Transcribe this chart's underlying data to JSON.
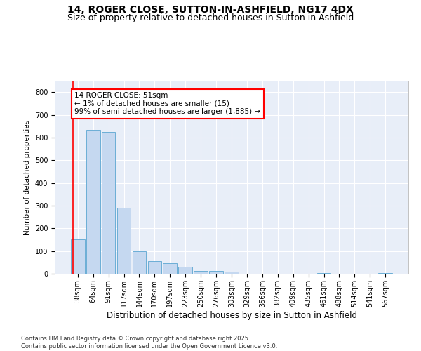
{
  "title1": "14, ROGER CLOSE, SUTTON-IN-ASHFIELD, NG17 4DX",
  "title2": "Size of property relative to detached houses in Sutton in Ashfield",
  "xlabel": "Distribution of detached houses by size in Sutton in Ashfield",
  "ylabel": "Number of detached properties",
  "categories": [
    "38sqm",
    "64sqm",
    "91sqm",
    "117sqm",
    "144sqm",
    "170sqm",
    "197sqm",
    "223sqm",
    "250sqm",
    "276sqm",
    "303sqm",
    "329sqm",
    "356sqm",
    "382sqm",
    "409sqm",
    "435sqm",
    "461sqm",
    "488sqm",
    "514sqm",
    "541sqm",
    "567sqm"
  ],
  "values": [
    150,
    635,
    625,
    290,
    100,
    55,
    45,
    30,
    13,
    13,
    8,
    0,
    0,
    0,
    0,
    0,
    3,
    0,
    0,
    0,
    3
  ],
  "bar_color": "#c5d8f0",
  "bar_edge_color": "#6baed6",
  "annotation_text": "14 ROGER CLOSE: 51sqm\n← 1% of detached houses are smaller (15)\n99% of semi-detached houses are larger (1,885) →",
  "ylim": [
    0,
    850
  ],
  "yticks": [
    0,
    100,
    200,
    300,
    400,
    500,
    600,
    700,
    800
  ],
  "bg_color": "#e8eef8",
  "grid_color": "#ffffff",
  "footer": "Contains HM Land Registry data © Crown copyright and database right 2025.\nContains public sector information licensed under the Open Government Licence v3.0.",
  "title_fontsize": 10,
  "subtitle_fontsize": 9,
  "bar_width": 0.9
}
